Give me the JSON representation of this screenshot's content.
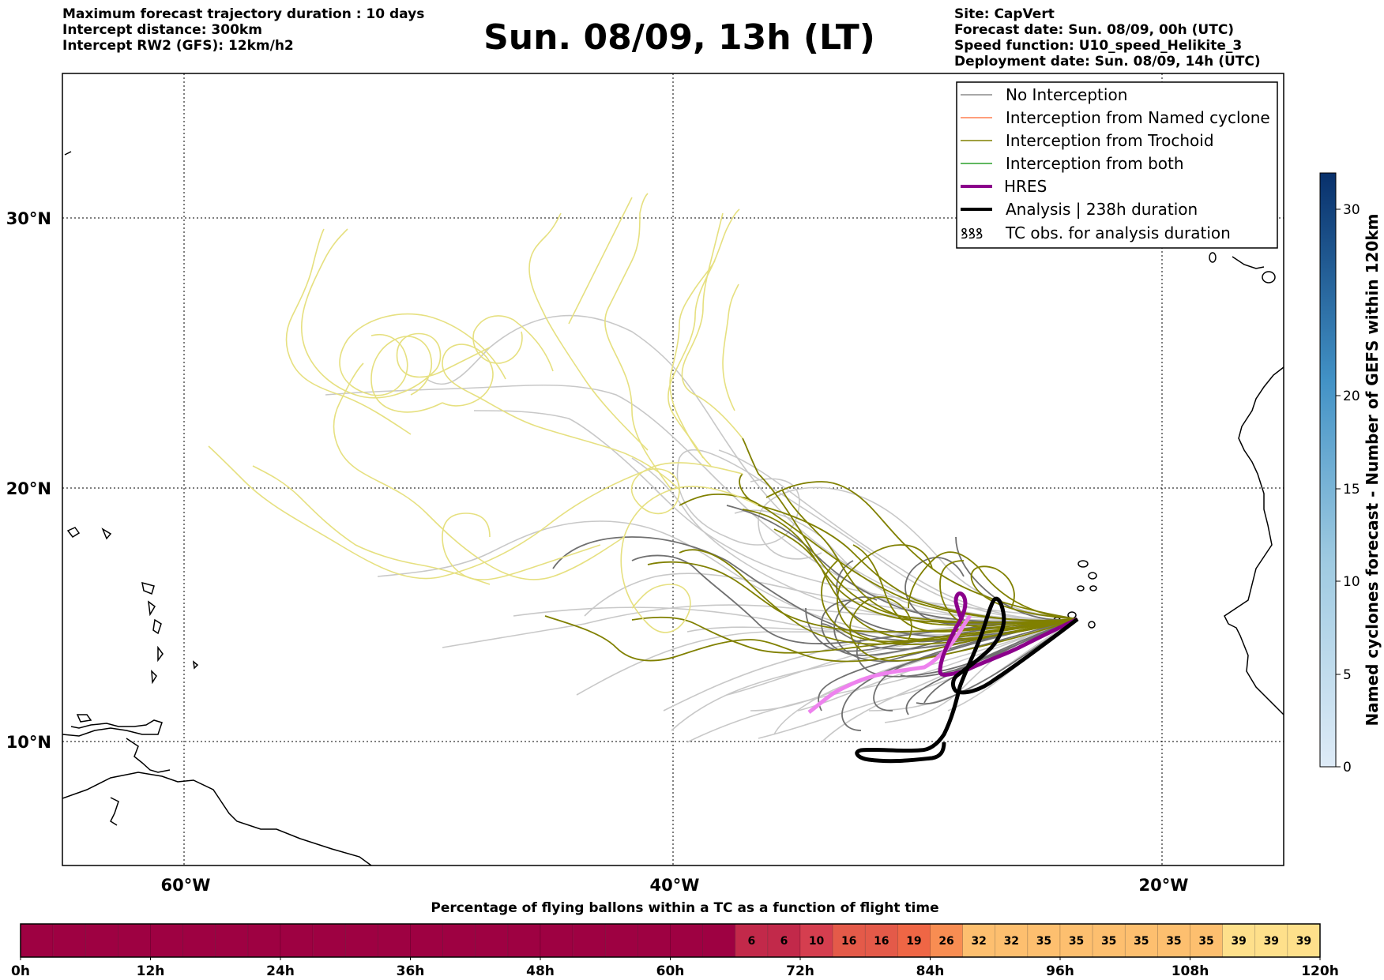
{
  "header": {
    "left": [
      "Maximum forecast trajectory duration : 10 days",
      "Intercept distance: 300km",
      "Intercept RW2 (GFS):  12km/h2"
    ],
    "title": "Sun. 08/09, 13h (LT)",
    "right": [
      "Site: CapVert",
      "Forecast date: Sun. 08/09, 00h (UTC)",
      "Speed function: U10_speed_Helikite_3",
      "Deployment date: Sun. 08/09, 14h (UTC)"
    ]
  },
  "map": {
    "lon_labels": [
      "60°W",
      "40°W",
      "20°W"
    ],
    "lat_labels": [
      "30°N",
      "20°N",
      "10°N"
    ],
    "legend": [
      {
        "label": "No Interception",
        "color": "#8c8c8c"
      },
      {
        "label": "Interception from Named cyclone",
        "color": "#ff7f50"
      },
      {
        "label": "Interception from Trochoid",
        "color": "#808000"
      },
      {
        "label": "Interception from both",
        "color": "#2ca02c"
      },
      {
        "label": "HRES",
        "color": "#8b008b"
      },
      {
        "label": "Analysis | 238h duration",
        "color": "#000000"
      },
      {
        "label": "TC obs. for analysis duration",
        "symbol": "ꝸꝸꝸ"
      }
    ],
    "colors": {
      "no_interception": "#808080",
      "no_interception_light": "#c8c8c8",
      "trochoid": "#808000",
      "trochoid_light": "#e6e080",
      "hres": "#8b008b",
      "hres_light": "#ee82ee",
      "analysis": "#000000"
    }
  },
  "colorbar": {
    "label": "Named cyclones forecast - Number of GEFS within 120km",
    "ticks": [
      "0",
      "5",
      "10",
      "15",
      "20",
      "30"
    ]
  },
  "chart_data": {
    "type": "heatmap",
    "title": "Percentage of flying ballons within a TC as a function of flight time",
    "x_tick_labels": [
      "0h",
      "12h",
      "24h",
      "36h",
      "48h",
      "60h",
      "72h",
      "84h",
      "96h",
      "108h",
      "120h"
    ],
    "bins_per_3h": [
      0,
      0,
      0,
      0,
      0,
      0,
      0,
      0,
      0,
      0,
      0,
      0,
      0,
      0,
      0,
      0,
      0,
      0,
      0,
      0,
      0,
      0,
      6,
      6,
      10,
      16,
      16,
      19,
      26,
      32,
      32,
      35,
      35,
      35,
      35,
      35,
      35,
      39,
      39,
      39
    ],
    "cell_labels_start_index": 22
  }
}
